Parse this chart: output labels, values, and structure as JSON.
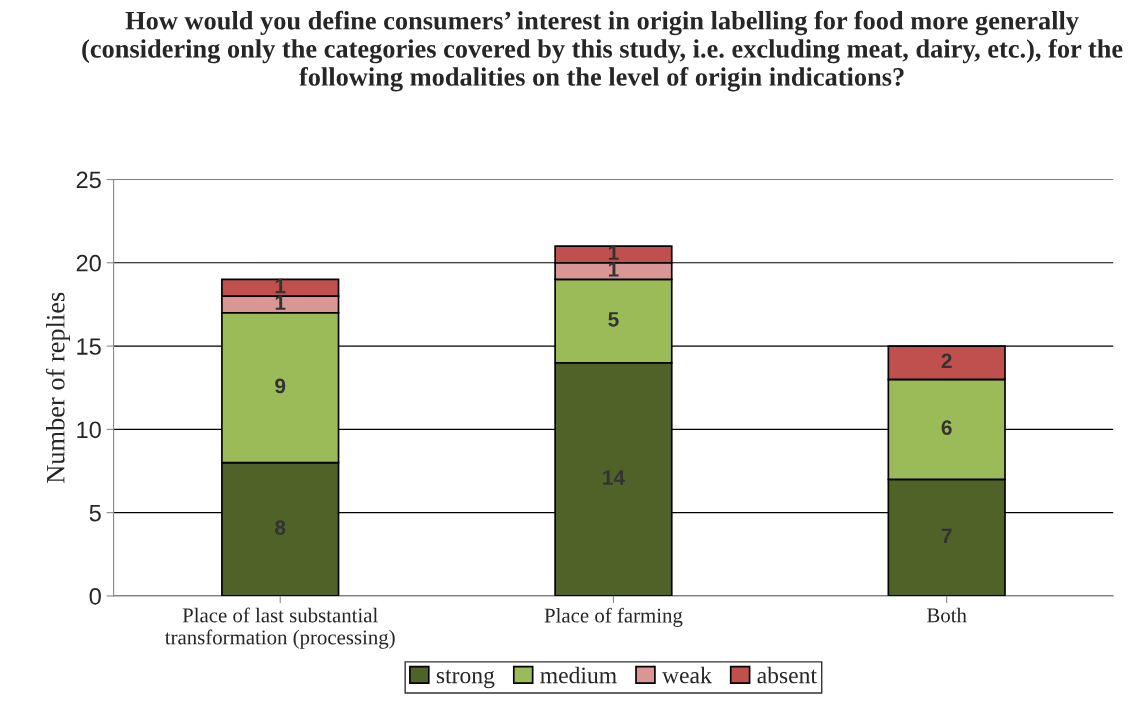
{
  "chart_data": {
    "type": "bar",
    "stacked": true,
    "title": "How would you define consumers’ interest in origin labelling for food more generally (considering only the categories covered by this study, i.e. excluding meat, dairy, etc.), for the following modalities on the level of origin indications?",
    "ylabel": "Number of replies",
    "categories": [
      "Place of last substantial\ntransformation (processing)",
      "Place of farming",
      "Both"
    ],
    "series": [
      {
        "name": "strong",
        "color": "#4f6228",
        "values": [
          8,
          14,
          7
        ],
        "value_labels": [
          "8",
          "14",
          "7"
        ]
      },
      {
        "name": "medium",
        "color": "#9bbb59",
        "values": [
          9,
          5,
          6
        ],
        "value_labels": [
          "9",
          "5",
          "6"
        ]
      },
      {
        "name": "weak",
        "color": "#d99694",
        "values": [
          1,
          1,
          0
        ],
        "value_labels": [
          "1",
          "1",
          null
        ]
      },
      {
        "name": "absent",
        "color": "#c0504d",
        "values": [
          1,
          1,
          2
        ],
        "value_labels": [
          "1",
          "1",
          "2"
        ]
      }
    ],
    "ylim": [
      0,
      25
    ],
    "yticks": [
      0,
      5,
      10,
      15,
      20,
      25
    ],
    "grid": "y",
    "legend": "bottom"
  }
}
